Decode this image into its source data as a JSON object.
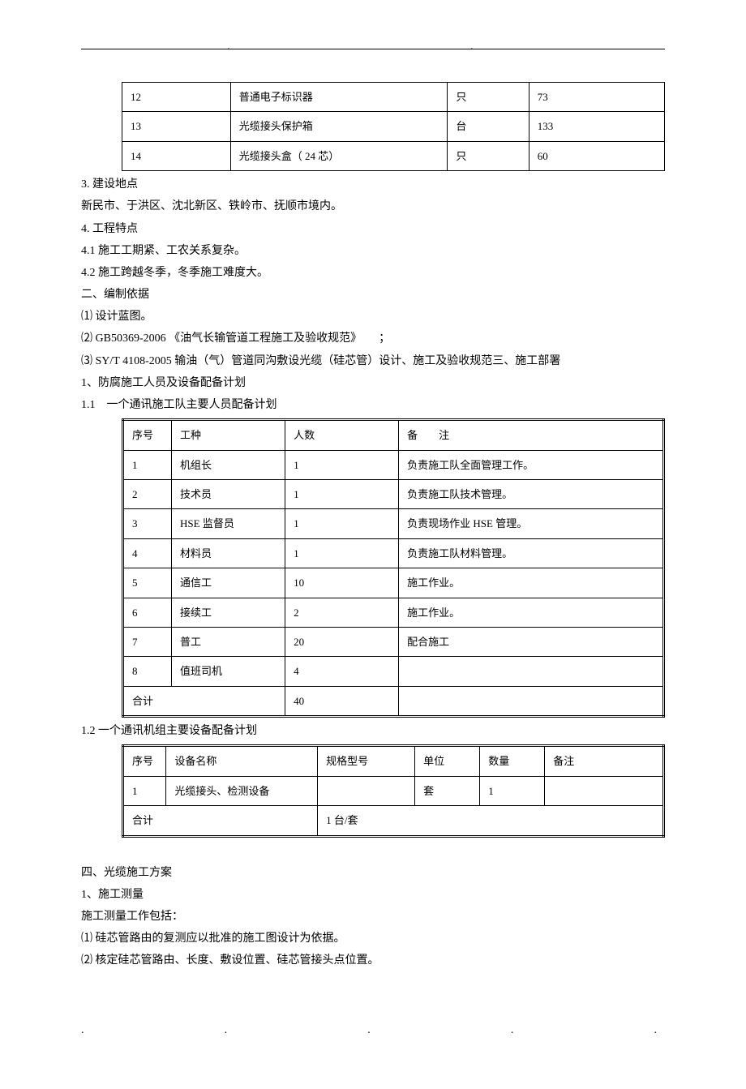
{
  "table1": {
    "rows": [
      [
        "12",
        "普通电子标识器",
        "只",
        "73"
      ],
      [
        "13",
        "光缆接头保护箱",
        "台",
        "133"
      ],
      [
        "14",
        "光缆接头盒（ 24 芯）",
        "只",
        "60"
      ]
    ]
  },
  "text": {
    "p1": "3. 建设地点",
    "p2": "新民市、于洪区、沈北新区、铁岭市、抚顺市境内。",
    "p3": "4. 工程特点",
    "p4": "4.1 施工工期紧、工农关系复杂。",
    "p5": "4.2 施工跨越冬季，冬季施工难度大。",
    "p6": "二、编制依据",
    "p7": "⑴ 设计蓝图。",
    "p8": "⑵ GB50369-2006 《油气长输管道工程施工及验收规范》　　；",
    "p9": "⑶ SY/T 4108-2005 输油（气）管道同沟敷设光缆（硅芯管）设计、施工及验收规范三、施工部署",
    "p10": "1、防腐施工人员及设备配备计划",
    "p11": "1.1　一个通讯施工队主要人员配备计划",
    "p12": "1.2 一个通讯机组主要设备配备计划",
    "p13": "四、光缆施工方案",
    "p14": "1、施工测量",
    "p15": "施工测量工作包括：",
    "p16": "⑴ 硅芯管路由的复测应以批准的施工图设计为依据。",
    "p17": "⑵ 核定硅芯管路由、长度、敷设位置、硅芯管接头点位置。"
  },
  "table2": {
    "headers": [
      "序号",
      "工种",
      "人数",
      "备　　注"
    ],
    "rows": [
      [
        "1",
        "机组长",
        "1",
        "负责施工队全面管理工作。"
      ],
      [
        "2",
        "技术员",
        "1",
        "负责施工队技术管理。"
      ],
      [
        "3",
        "HSE 监督员",
        "1",
        "负责现场作业 HSE 管理。"
      ],
      [
        "4",
        "材料员",
        "1",
        "负责施工队材料管理。"
      ],
      [
        "5",
        "通信工",
        "10",
        "施工作业。"
      ],
      [
        "6",
        "接续工",
        "2",
        "施工作业。"
      ],
      [
        "7",
        "普工",
        "20",
        "配合施工"
      ],
      [
        "8",
        "值班司机",
        "4",
        ""
      ]
    ],
    "footer_label": "合计",
    "footer_value": "40"
  },
  "table3": {
    "headers": [
      "序号",
      "设备名称",
      "规格型号",
      "单位",
      "数量",
      "备注"
    ],
    "rows": [
      [
        "1",
        "光缆接头、检测设备",
        "",
        "套",
        "1",
        ""
      ]
    ],
    "footer_label": "合计",
    "footer_value": "1 台/套"
  }
}
